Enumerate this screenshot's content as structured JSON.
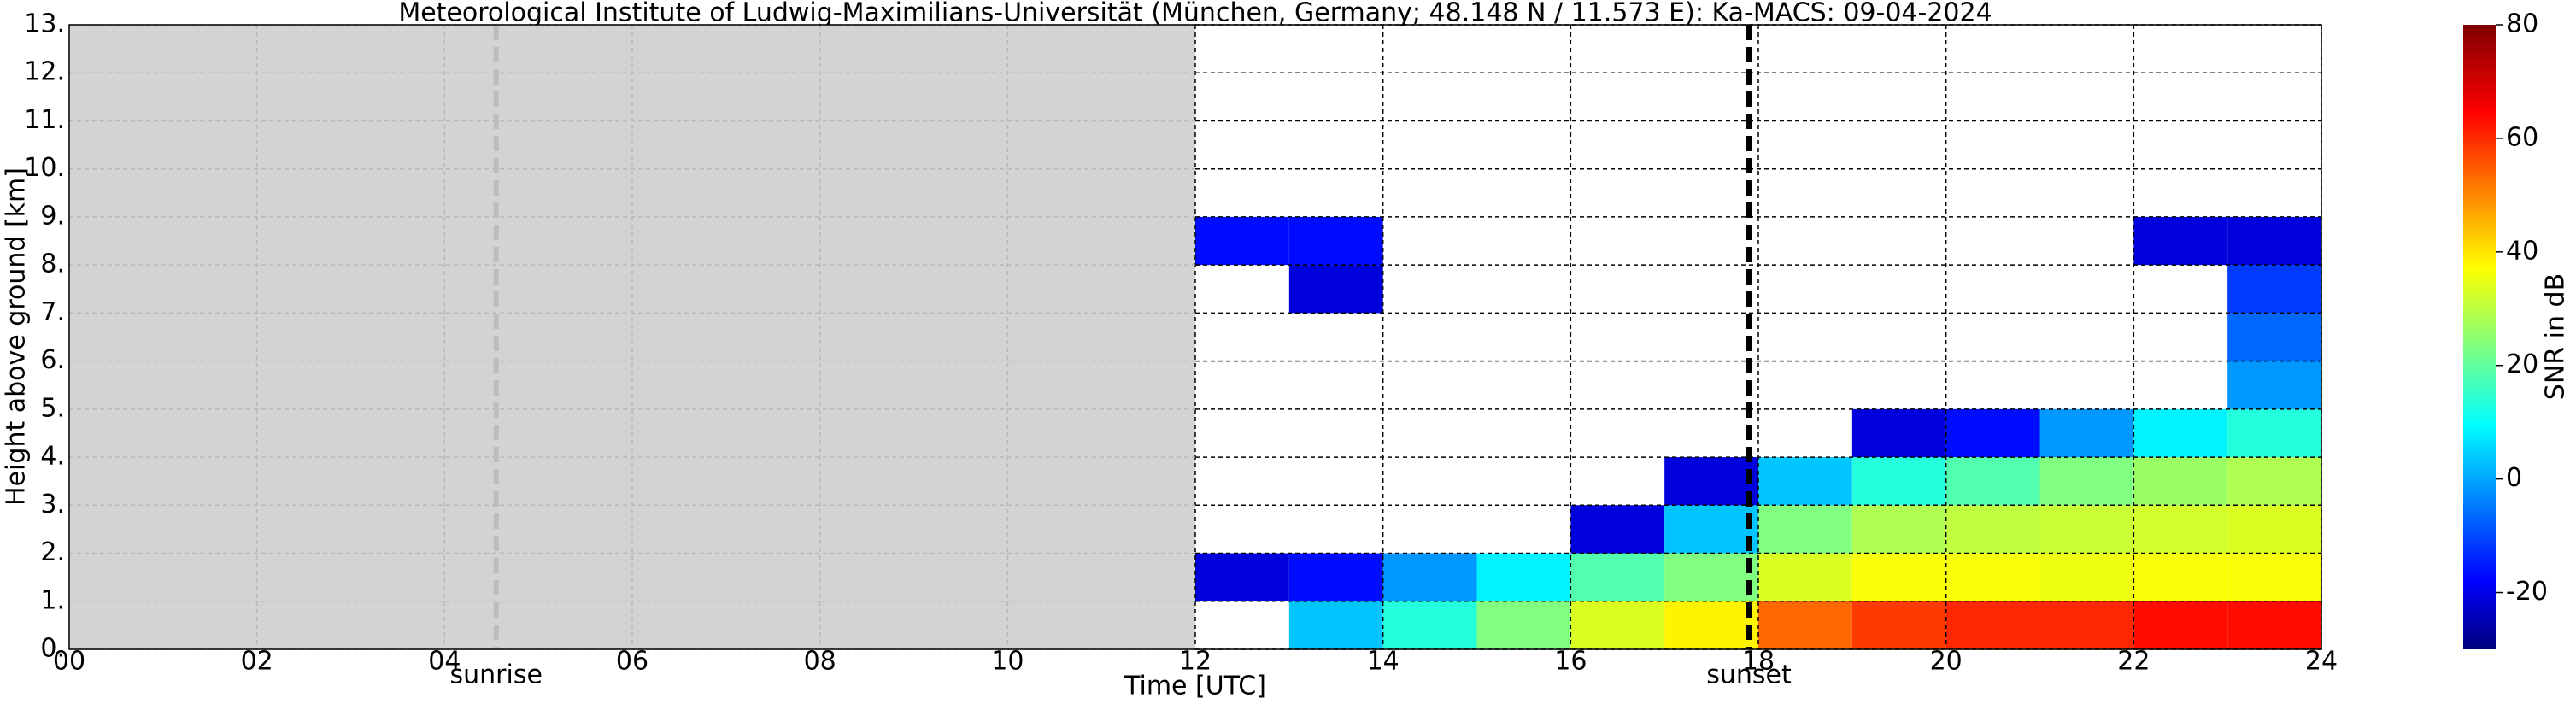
{
  "chart_data": {
    "type": "heatmap",
    "title": "Meteorological Institute of Ludwig-Maximilians-Universität (München, Germany; 48.148 N / 11.573 E):    Ka-MACS: 09-04-2024",
    "xlabel": "Time [UTC]",
    "ylabel": "Height above ground [km]",
    "x": [
      12.5,
      13.5,
      14.5,
      15.5,
      16.5,
      17.5,
      18.5,
      19.5,
      20.5,
      21.5,
      22.5,
      23.5
    ],
    "y": [
      0.5,
      1.5,
      2.5,
      3.5,
      4.5,
      5.5,
      6.5,
      7.5,
      8.5,
      9.5,
      10.5,
      11.5,
      12.5
    ],
    "z": [
      [
        null,
        -20,
        null,
        null,
        null,
        null,
        null,
        null,
        -15,
        null,
        null,
        null,
        null
      ],
      [
        5,
        -15,
        null,
        null,
        null,
        null,
        null,
        -20,
        -15,
        null,
        null,
        null,
        null
      ],
      [
        15,
        0,
        null,
        null,
        null,
        null,
        null,
        null,
        null,
        null,
        null,
        null,
        null
      ],
      [
        25,
        10,
        null,
        null,
        null,
        null,
        null,
        null,
        null,
        null,
        null,
        null,
        null
      ],
      [
        35,
        20,
        -20,
        null,
        null,
        null,
        null,
        null,
        null,
        null,
        null,
        null,
        null
      ],
      [
        40,
        25,
        5,
        -20,
        null,
        null,
        null,
        null,
        null,
        null,
        null,
        null,
        null
      ],
      [
        55,
        35,
        25,
        5,
        null,
        null,
        null,
        null,
        null,
        null,
        null,
        null,
        null
      ],
      [
        60,
        38,
        30,
        15,
        -20,
        null,
        null,
        null,
        null,
        null,
        null,
        null,
        null
      ],
      [
        62,
        38,
        32,
        20,
        -15,
        null,
        null,
        null,
        null,
        null,
        null,
        null,
        null
      ],
      [
        62,
        37,
        33,
        25,
        0,
        null,
        null,
        null,
        null,
        null,
        null,
        null,
        null
      ],
      [
        65,
        38,
        34,
        28,
        10,
        null,
        null,
        null,
        -20,
        null,
        null,
        null,
        null
      ],
      [
        65,
        38,
        35,
        30,
        15,
        0,
        -5,
        -10,
        -20,
        null,
        null,
        null,
        null
      ]
    ],
    "xlim": [
      0,
      24
    ],
    "ylim": [
      0,
      13
    ],
    "xticks": [
      {
        "value": 0,
        "label": "00"
      },
      {
        "value": 2,
        "label": "02"
      },
      {
        "value": 4,
        "label": "04"
      },
      {
        "value": 6,
        "label": "06"
      },
      {
        "value": 8,
        "label": "08"
      },
      10,
      12,
      14,
      16,
      18,
      20,
      22,
      24
    ],
    "yticks": [
      {
        "value": 0,
        "label": "0."
      },
      {
        "value": 1,
        "label": "1."
      },
      {
        "value": 2,
        "label": "2."
      },
      {
        "value": 3,
        "label": "3."
      },
      {
        "value": 4,
        "label": "4."
      },
      {
        "value": 5,
        "label": "5."
      },
      {
        "value": 6,
        "label": "6."
      },
      {
        "value": 7,
        "label": "7."
      },
      {
        "value": 8,
        "label": "8."
      },
      {
        "value": 9,
        "label": "9."
      },
      {
        "value": 10,
        "label": "10."
      },
      {
        "value": 11,
        "label": "11."
      },
      {
        "value": 12,
        "label": "12."
      },
      {
        "value": 13,
        "label": "13."
      }
    ],
    "grid": true,
    "shaded_xrange": [
      0,
      12
    ],
    "annotations": [
      {
        "text": "sunrise",
        "x": 4.55
      },
      {
        "text": "sunset",
        "x": 17.9
      }
    ],
    "colorbar": {
      "label": "SNR in dB",
      "clim": [
        -30,
        80
      ],
      "ticks": [
        -20,
        0,
        20,
        40,
        60,
        80
      ]
    }
  }
}
